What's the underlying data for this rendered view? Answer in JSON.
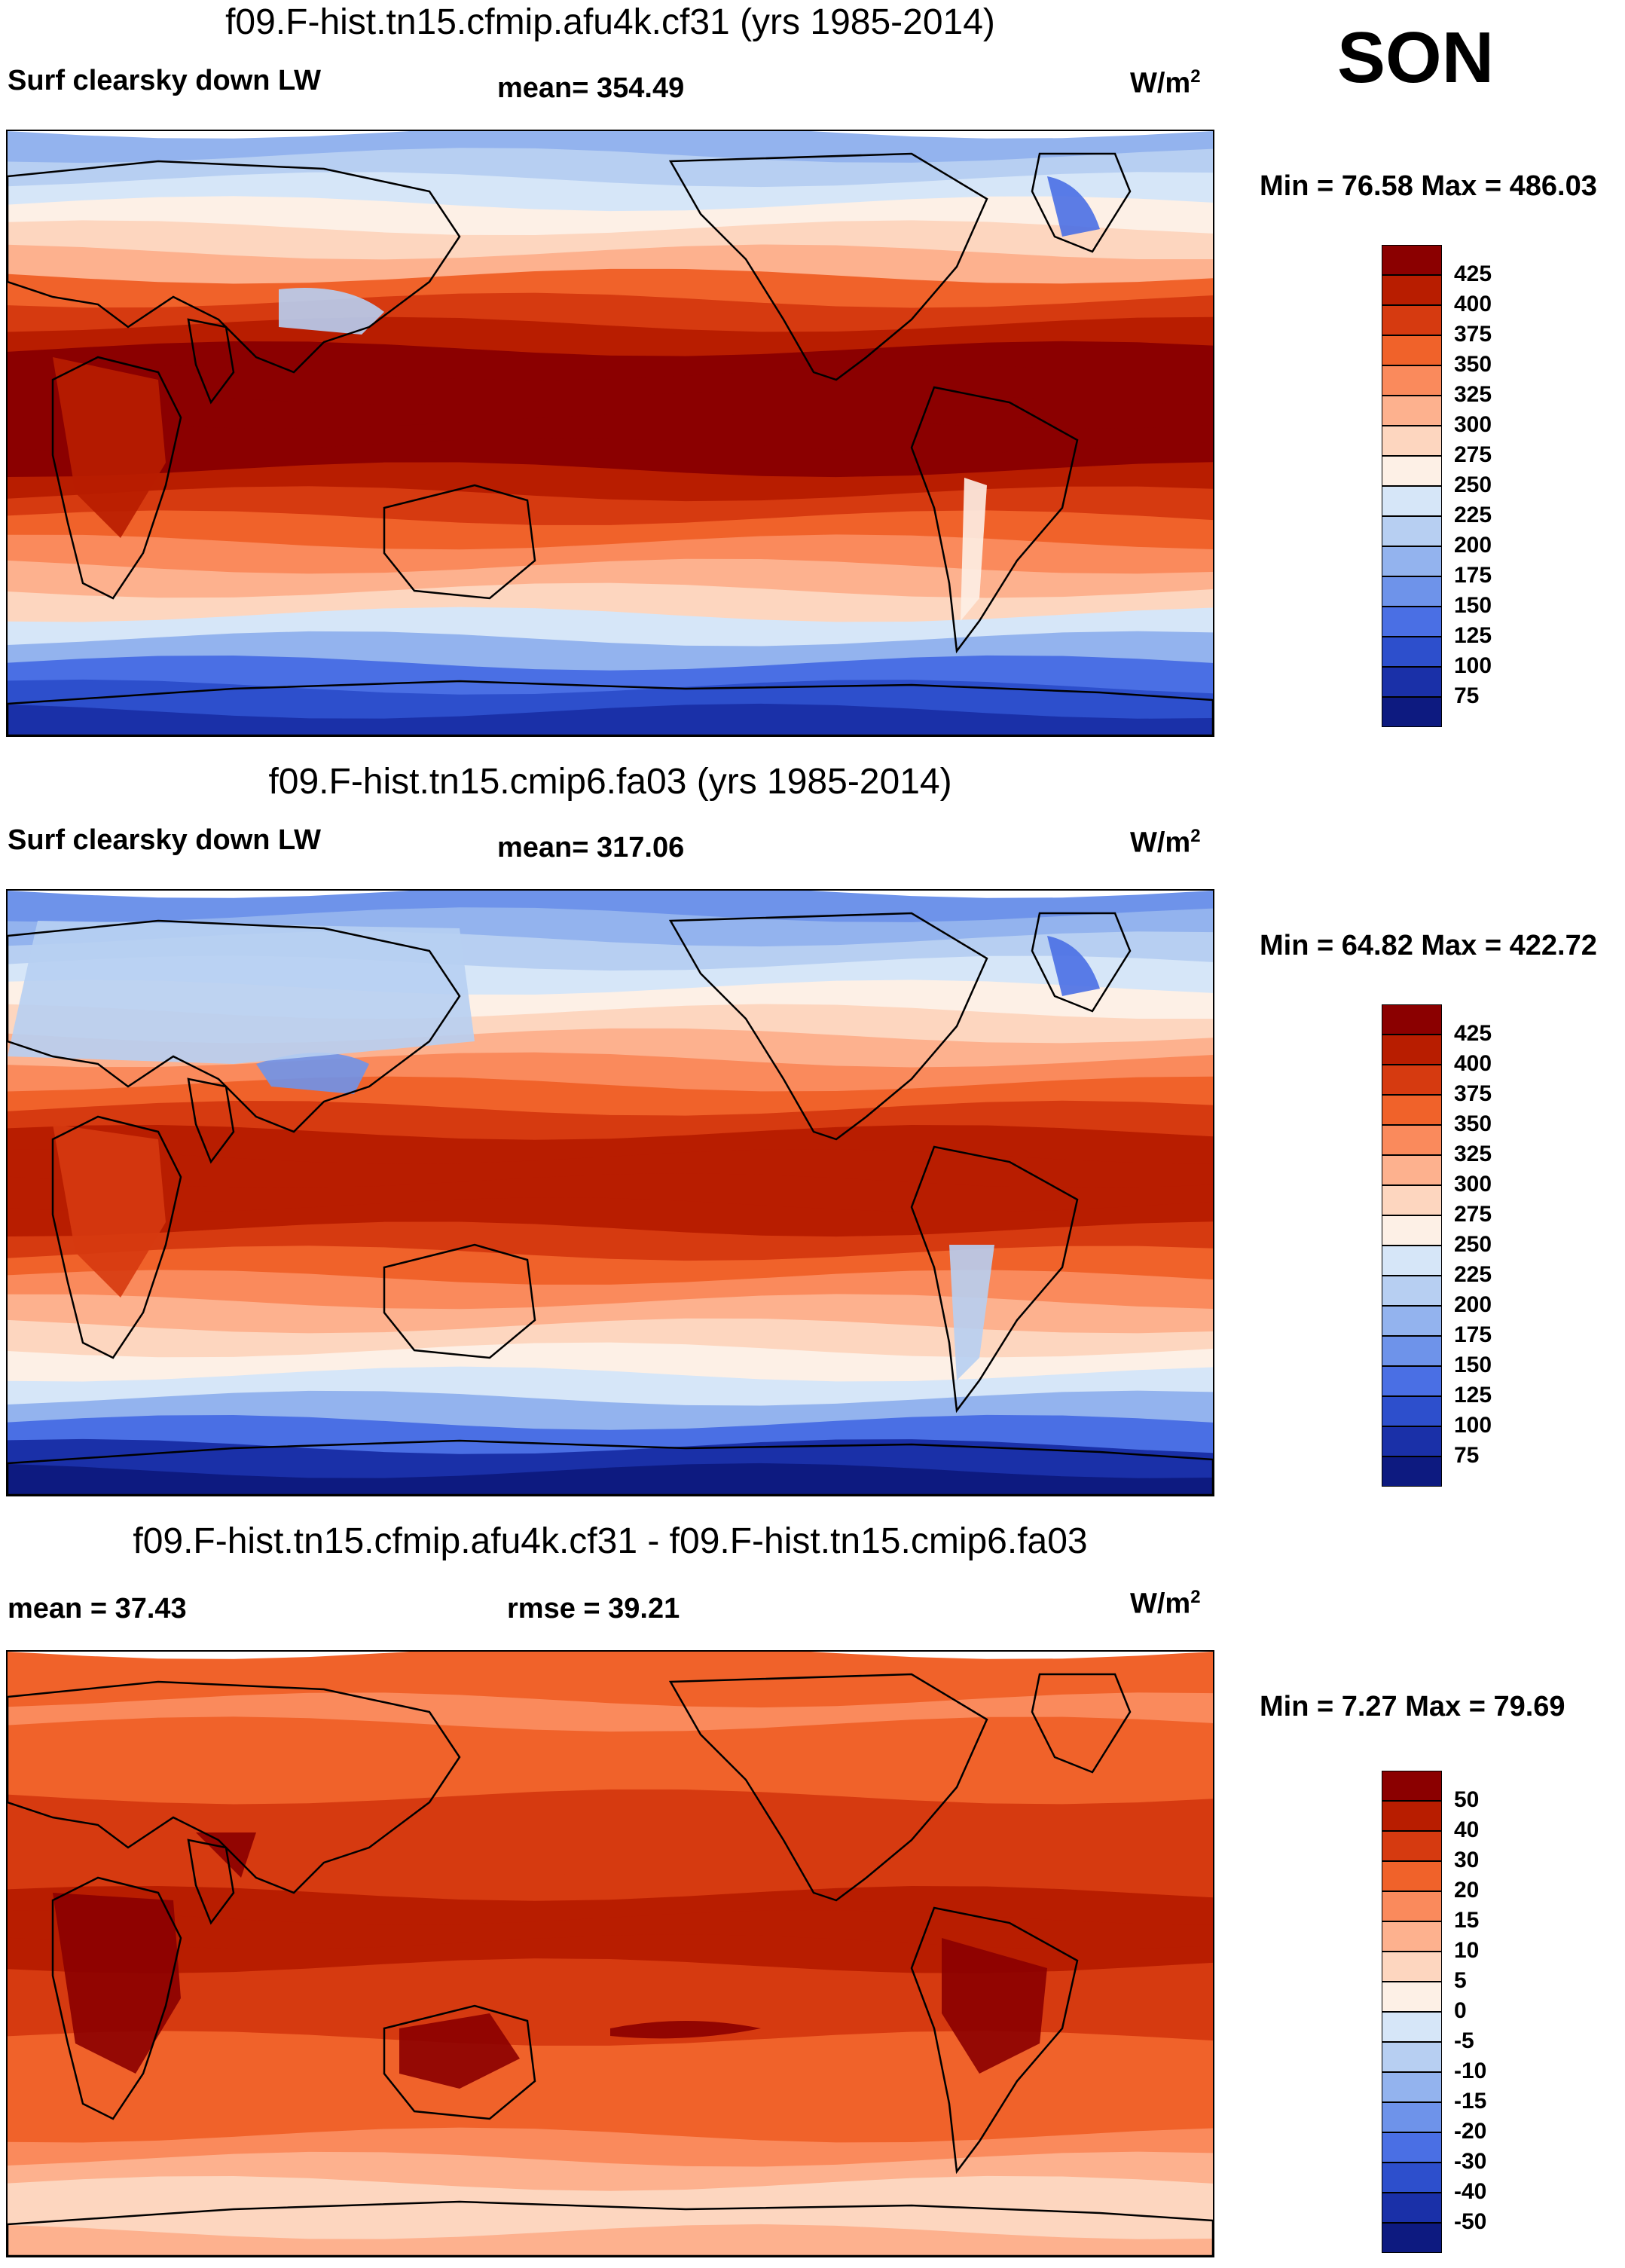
{
  "season": "SON",
  "panels": [
    {
      "title": "f09.F-hist.tn15.cfmip.afu4k.cf31 (yrs 1985-2014)",
      "left_label": "Surf clearsky down LW",
      "center_label": "mean= 354.49",
      "units": "W/m",
      "units_exp": "2",
      "minmax": "Min =  76.58 Max = 486.03",
      "colorbar": [
        "425",
        "400",
        "375",
        "350",
        "325",
        "300",
        "275",
        "250",
        "225",
        "200",
        "175",
        "150",
        "125",
        "100",
        "75"
      ],
      "colors": [
        "#8b0000",
        "#b81d00",
        "#d63a10",
        "#f0622a",
        "#fa8a5c",
        "#fdb18e",
        "#fdd6bf",
        "#fdf0e6",
        "#d6e6f8",
        "#b7cff2",
        "#93b3ee",
        "#6e93ea",
        "#4a6fe4",
        "#2d4fcc",
        "#1a30a8",
        "#0d1a80"
      ]
    },
    {
      "title": "f09.F-hist.tn15.cmip6.fa03 (yrs 1985-2014)",
      "left_label": "Surf clearsky down LW",
      "center_label": "mean= 317.06",
      "units": "W/m",
      "units_exp": "2",
      "minmax": "Min =  64.82 Max = 422.72",
      "colorbar": [
        "425",
        "400",
        "375",
        "350",
        "325",
        "300",
        "275",
        "250",
        "225",
        "200",
        "175",
        "150",
        "125",
        "100",
        "75"
      ],
      "colors": [
        "#8b0000",
        "#b81d00",
        "#d63a10",
        "#f0622a",
        "#fa8a5c",
        "#fdb18e",
        "#fdd6bf",
        "#fdf0e6",
        "#d6e6f8",
        "#b7cff2",
        "#93b3ee",
        "#6e93ea",
        "#4a6fe4",
        "#2d4fcc",
        "#1a30a8",
        "#0d1a80"
      ]
    },
    {
      "title": "f09.F-hist.tn15.cfmip.afu4k.cf31 - f09.F-hist.tn15.cmip6.fa03",
      "left_label": "mean =  37.43",
      "center_label": "rmse =  39.21",
      "units": "W/m",
      "units_exp": "2",
      "minmax": "Min =   7.27 Max =  79.69",
      "colorbar": [
        "50",
        "40",
        "30",
        "20",
        "15",
        "10",
        "5",
        "0",
        "-5",
        "-10",
        "-15",
        "-20",
        "-30",
        "-40",
        "-50"
      ],
      "colors": [
        "#8b0000",
        "#b81d00",
        "#d63a10",
        "#f0622a",
        "#fa8a5c",
        "#fdb18e",
        "#fdd6bf",
        "#fdf0e6",
        "#d6e6f8",
        "#b7cff2",
        "#93b3ee",
        "#6e93ea",
        "#4a6fe4",
        "#2d4fcc",
        "#1a30a8",
        "#0d1a80"
      ]
    }
  ]
}
